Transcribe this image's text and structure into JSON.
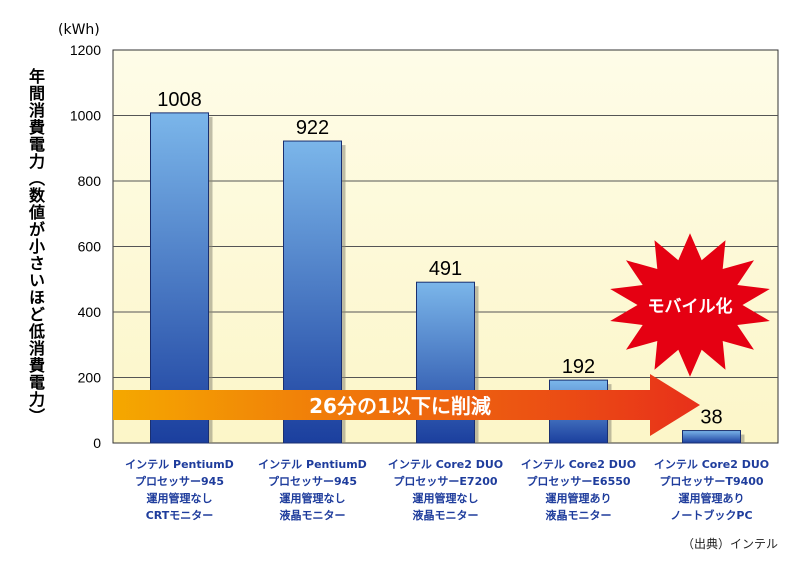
{
  "chart_data": {
    "type": "bar",
    "unit": "(kWh)",
    "ylabel": "年間消費電力（数値が小さいほど低消費電力）",
    "ylim": [
      0,
      1200
    ],
    "yticks": [
      "0",
      "200",
      "400",
      "600",
      "800",
      "1000",
      "1200"
    ],
    "grid": true,
    "categories": [
      [
        "インテル PentiumD",
        "プロセッサー945",
        "運用管理なし",
        "CRTモニター"
      ],
      [
        "インテル PentiumD",
        "プロセッサー945",
        "運用管理なし",
        "液晶モニター"
      ],
      [
        "インテル Core2 DUO",
        "プロセッサーE7200",
        "運用管理なし",
        "液晶モニター"
      ],
      [
        "インテル Core2 DUO",
        "プロセッサーE6550",
        "運用管理あり",
        "液晶モニター"
      ],
      [
        "インテル Core2 DUO",
        "プロセッサーT9400",
        "運用管理あり",
        "ノートブックPC"
      ]
    ],
    "values": [
      1008,
      922,
      491,
      192,
      38
    ],
    "data_labels": [
      "1008",
      "922",
      "491",
      "192",
      "38"
    ],
    "annotations": {
      "arrow_text": "26分の1以下に削減",
      "burst_text": "モバイル化"
    },
    "colors": {
      "plot_bg": "#fdf9d4",
      "bar_top": "#7bb6ea",
      "bar_bottom": "#1b3f9e",
      "arrow_start": "#f5a800",
      "arrow_end": "#e8301a",
      "burst": "#e50012"
    }
  },
  "source": "（出典）インテル"
}
